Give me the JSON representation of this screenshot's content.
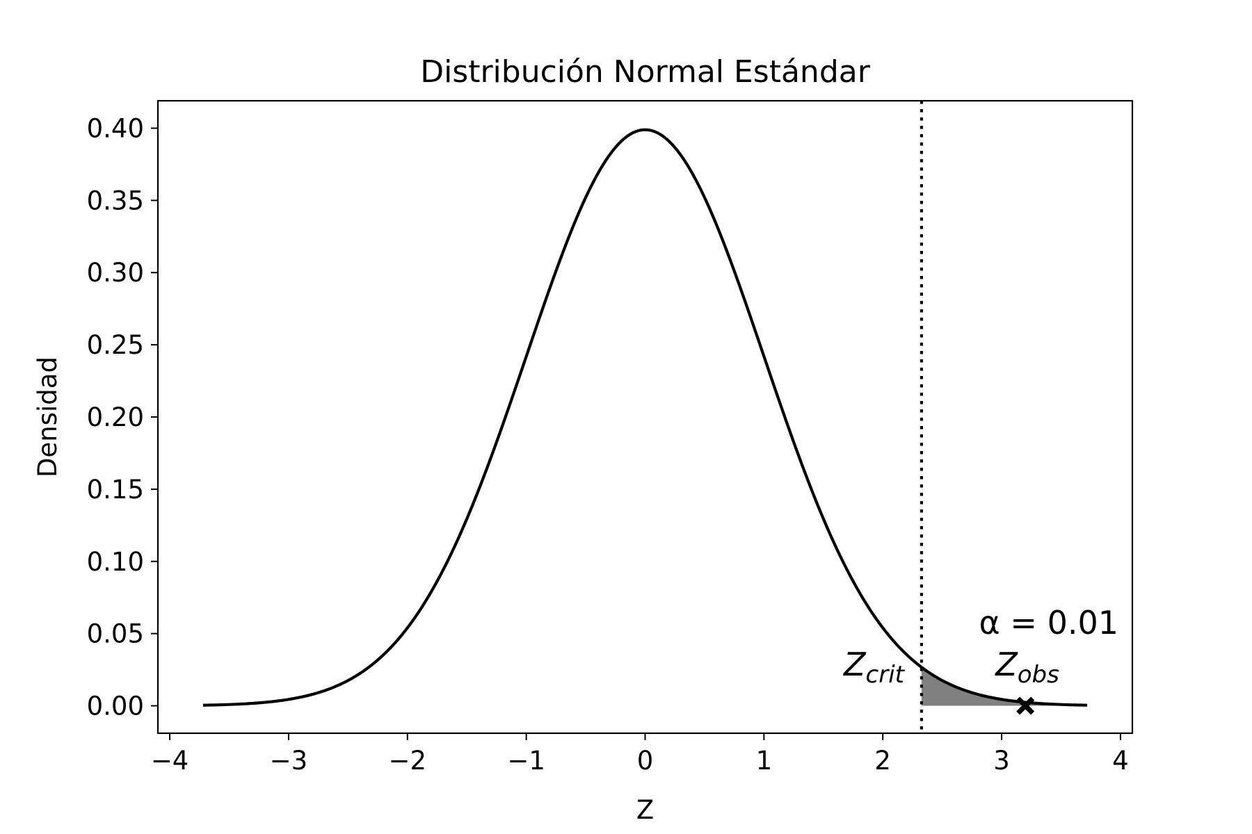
{
  "chart_data": {
    "type": "line",
    "title": "Distribución Normal Estándar",
    "xlabel": "Z",
    "ylabel": "Densidad",
    "xlim": [
      -4.1,
      4.1
    ],
    "ylim": [
      -0.019,
      0.419
    ],
    "xticks": [
      -4,
      -3,
      -2,
      -1,
      0,
      1,
      2,
      3,
      4
    ],
    "xtick_labels": [
      "−4",
      "−3",
      "−2",
      "−1",
      "0",
      "1",
      "2",
      "3",
      "4"
    ],
    "yticks": [
      0.0,
      0.05,
      0.1,
      0.15,
      0.2,
      0.25,
      0.3,
      0.35,
      0.4
    ],
    "ytick_labels": [
      "0.00",
      "0.05",
      "0.10",
      "0.15",
      "0.20",
      "0.25",
      "0.30",
      "0.35",
      "0.40"
    ],
    "grid": false,
    "curve": {
      "distribution": "standard normal pdf",
      "x_range": [
        -3.72,
        3.72
      ],
      "color": "#000000"
    },
    "critical_line": {
      "x": 2.326,
      "style": "dotted",
      "color": "#000000"
    },
    "shaded_region": {
      "x_from": 2.326,
      "x_to": 3.72,
      "color": "#808080"
    },
    "observed_point": {
      "x": 3.2,
      "y": 0.0,
      "marker": "X",
      "color": "#000000"
    },
    "annotations": {
      "z_crit": {
        "main": "Z",
        "sub": "crit"
      },
      "z_obs": {
        "main": "Z",
        "sub": "obs"
      },
      "alpha": "α = 0.01"
    }
  }
}
